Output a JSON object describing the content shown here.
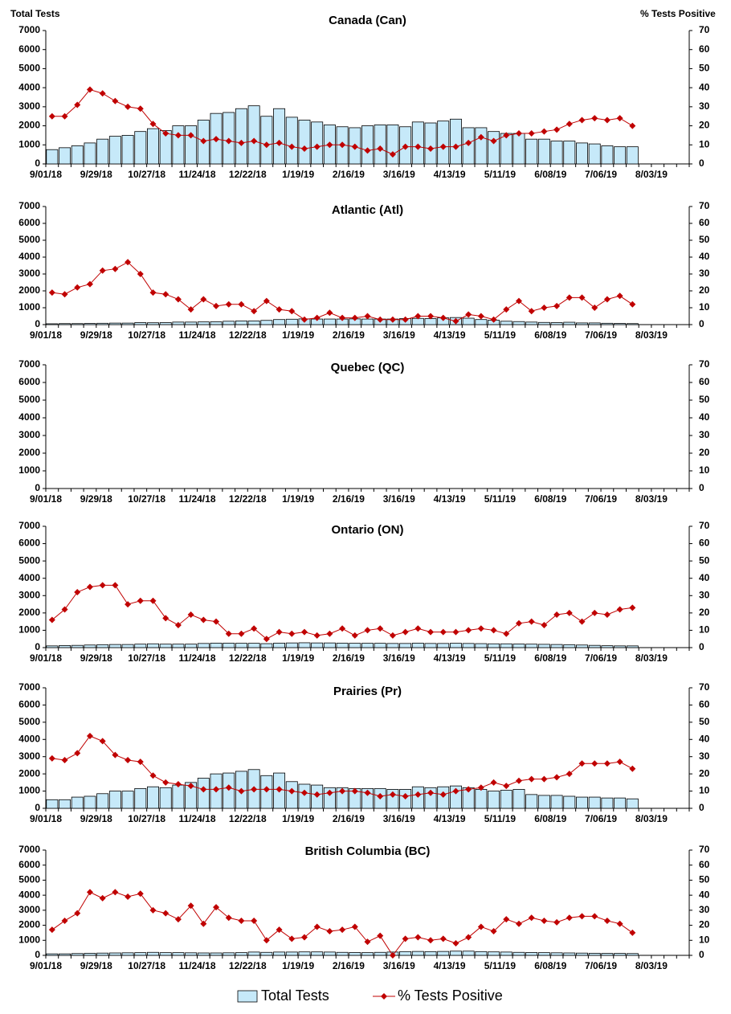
{
  "chart_data": [
    {
      "type": "combo",
      "title": "Canada (Can)",
      "ylabel": "Total Tests",
      "y2label": "% Tests Positive",
      "categories": [
        "9/01/18",
        null,
        null,
        null,
        "9/29/18",
        null,
        null,
        null,
        "10/27/18",
        null,
        null,
        null,
        "11/24/18",
        null,
        null,
        null,
        "12/22/18",
        null,
        null,
        null,
        "1/19/19",
        null,
        null,
        null,
        "2/16/19",
        null,
        null,
        null,
        "3/16/19",
        null,
        null,
        null,
        "4/13/19",
        null,
        null,
        null,
        "5/11/19",
        null,
        null,
        null,
        "6/08/19",
        null,
        null,
        null,
        "7/06/19",
        null,
        null,
        null,
        "8/03/19",
        null,
        null
      ],
      "series": [
        {
          "type": "bar",
          "color": "#c6e9f9",
          "values": [
            750,
            850,
            950,
            1100,
            1300,
            1450,
            1500,
            1700,
            1850,
            1750,
            2000,
            2000,
            2300,
            2650,
            2700,
            2900,
            3050,
            2500,
            2900,
            2450,
            2300,
            2200,
            2050,
            1950,
            1900,
            2000,
            2050,
            2050,
            1950,
            2200,
            2150,
            2250,
            2350,
            1900,
            1900,
            1700,
            1600,
            1600,
            1300,
            1300,
            1200,
            1200,
            1100,
            1050,
            950,
            900,
            900,
            null,
            null,
            null,
            null
          ]
        },
        {
          "type": "line",
          "axis": "y2",
          "color": "#c00000",
          "values": [
            25,
            25,
            31,
            39,
            37,
            33,
            30,
            29,
            21,
            16,
            15,
            15,
            12,
            13,
            12,
            11,
            12,
            10,
            11,
            9,
            8,
            9,
            10,
            10,
            9,
            7,
            8,
            5,
            9,
            9,
            8,
            9,
            9,
            11,
            14,
            12,
            15,
            16,
            16,
            17,
            18,
            21,
            23,
            24,
            23,
            24,
            20,
            null,
            null,
            null,
            null
          ]
        }
      ],
      "ylim": [
        0,
        7000
      ],
      "yticks": [
        0,
        1000,
        2000,
        3000,
        4000,
        5000,
        6000,
        7000
      ],
      "y2lim": [
        0,
        70
      ],
      "y2ticks": [
        0,
        10,
        20,
        30,
        40,
        50,
        60,
        70
      ]
    },
    {
      "type": "combo",
      "title": "Atlantic (Atl)",
      "categories": [
        "9/01/18",
        null,
        null,
        null,
        "9/29/18",
        null,
        null,
        null,
        "10/27/18",
        null,
        null,
        null,
        "11/24/18",
        null,
        null,
        null,
        "12/22/18",
        null,
        null,
        null,
        "1/19/19",
        null,
        null,
        null,
        "2/16/19",
        null,
        null,
        null,
        "3/16/19",
        null,
        null,
        null,
        "4/13/19",
        null,
        null,
        null,
        "5/11/19",
        null,
        null,
        null,
        "6/08/19",
        null,
        null,
        null,
        "7/06/19",
        null,
        null,
        null,
        "8/03/19",
        null,
        null
      ],
      "series": [
        {
          "type": "bar",
          "color": "#c6e9f9",
          "values": [
            50,
            60,
            60,
            70,
            80,
            90,
            90,
            120,
            110,
            120,
            150,
            150,
            160,
            170,
            200,
            220,
            220,
            250,
            300,
            320,
            340,
            330,
            330,
            330,
            340,
            330,
            330,
            330,
            360,
            370,
            360,
            400,
            420,
            380,
            300,
            260,
            200,
            180,
            150,
            130,
            120,
            140,
            100,
            100,
            80,
            70,
            60,
            null,
            null,
            null,
            null
          ]
        },
        {
          "type": "line",
          "axis": "y2",
          "color": "#c00000",
          "values": [
            19,
            18,
            22,
            24,
            32,
            33,
            37,
            30,
            19,
            18,
            15,
            9,
            15,
            11,
            12,
            12,
            8,
            14,
            9,
            8,
            3,
            4,
            7,
            4,
            4,
            5,
            3,
            3,
            3,
            5,
            5,
            4,
            2,
            6,
            5,
            3,
            9,
            14,
            8,
            10,
            11,
            16,
            16,
            10,
            15,
            17,
            12,
            null,
            null,
            null,
            null
          ]
        }
      ],
      "ylim": [
        0,
        7000
      ],
      "yticks": [
        0,
        1000,
        2000,
        3000,
        4000,
        5000,
        6000,
        7000
      ],
      "y2lim": [
        0,
        70
      ],
      "y2ticks": [
        0,
        10,
        20,
        30,
        40,
        50,
        60,
        70
      ]
    },
    {
      "type": "combo",
      "title": "Quebec (QC)",
      "categories": [
        "9/01/18",
        null,
        null,
        null,
        "9/29/18",
        null,
        null,
        null,
        "10/27/18",
        null,
        null,
        null,
        "11/24/18",
        null,
        null,
        null,
        "12/22/18",
        null,
        null,
        null,
        "1/19/19",
        null,
        null,
        null,
        "2/16/19",
        null,
        null,
        null,
        "3/16/19",
        null,
        null,
        null,
        "4/13/19",
        null,
        null,
        null,
        "5/11/19",
        null,
        null,
        null,
        "6/08/19",
        null,
        null,
        null,
        "7/06/19",
        null,
        null,
        null,
        "8/03/19",
        null,
        null
      ],
      "series": [
        {
          "type": "bar",
          "color": "#c6e9f9",
          "values": [
            null,
            null,
            null,
            null,
            null,
            null,
            null,
            null,
            null,
            null,
            null,
            null,
            null,
            null,
            null,
            null,
            null,
            null,
            null,
            null,
            null,
            null,
            null,
            null,
            null,
            null,
            null,
            null,
            null,
            null,
            null,
            null,
            null,
            null,
            null,
            null,
            null,
            null,
            null,
            null,
            null,
            null,
            null,
            null,
            null,
            null,
            null,
            null,
            null,
            null,
            null
          ]
        },
        {
          "type": "line",
          "axis": "y2",
          "color": "#c00000",
          "values": [
            null,
            null,
            null,
            null,
            null,
            null,
            null,
            null,
            null,
            null,
            null,
            null,
            null,
            null,
            null,
            null,
            null,
            null,
            null,
            null,
            null,
            null,
            null,
            null,
            null,
            null,
            null,
            null,
            null,
            null,
            null,
            null,
            null,
            null,
            null,
            null,
            null,
            null,
            null,
            null,
            null,
            null,
            null,
            null,
            null,
            null,
            null,
            null,
            null,
            null,
            null
          ]
        }
      ],
      "ylim": [
        0,
        7000
      ],
      "yticks": [
        0,
        1000,
        2000,
        3000,
        4000,
        5000,
        6000,
        7000
      ],
      "y2lim": [
        0,
        70
      ],
      "y2ticks": [
        0,
        10,
        20,
        30,
        40,
        50,
        60,
        70
      ]
    },
    {
      "type": "combo",
      "title": "Ontario (ON)",
      "categories": [
        "9/01/18",
        null,
        null,
        null,
        "9/29/18",
        null,
        null,
        null,
        "10/27/18",
        null,
        null,
        null,
        "11/24/18",
        null,
        null,
        null,
        "12/22/18",
        null,
        null,
        null,
        "1/19/19",
        null,
        null,
        null,
        "2/16/19",
        null,
        null,
        null,
        "3/16/19",
        null,
        null,
        null,
        "4/13/19",
        null,
        null,
        null,
        "5/11/19",
        null,
        null,
        null,
        "6/08/19",
        null,
        null,
        null,
        "7/06/19",
        null,
        null,
        null,
        "8/03/19",
        null,
        null
      ],
      "series": [
        {
          "type": "bar",
          "color": "#c6e9f9",
          "values": [
            100,
            120,
            130,
            150,
            170,
            180,
            180,
            200,
            220,
            200,
            200,
            200,
            240,
            260,
            260,
            250,
            250,
            230,
            260,
            270,
            280,
            270,
            270,
            260,
            250,
            250,
            250,
            240,
            240,
            260,
            240,
            240,
            250,
            240,
            230,
            220,
            220,
            210,
            200,
            190,
            180,
            170,
            150,
            130,
            110,
            100,
            100,
            null,
            null,
            null,
            null
          ]
        },
        {
          "type": "line",
          "axis": "y2",
          "color": "#c00000",
          "values": [
            16,
            22,
            32,
            35,
            36,
            36,
            25,
            27,
            27,
            17,
            13,
            19,
            16,
            15,
            8,
            8,
            11,
            5,
            9,
            8,
            9,
            7,
            8,
            11,
            7,
            10,
            11,
            7,
            9,
            11,
            9,
            9,
            9,
            10,
            11,
            10,
            8,
            14,
            15,
            13,
            19,
            20,
            15,
            20,
            19,
            22,
            23,
            null,
            null,
            null,
            null
          ]
        }
      ],
      "ylim": [
        0,
        7000
      ],
      "yticks": [
        0,
        1000,
        2000,
        3000,
        4000,
        5000,
        6000,
        7000
      ],
      "y2lim": [
        0,
        70
      ],
      "y2ticks": [
        0,
        10,
        20,
        30,
        40,
        50,
        60,
        70
      ]
    },
    {
      "type": "combo",
      "title": "Prairies (Pr)",
      "categories": [
        "9/01/18",
        null,
        null,
        null,
        "9/29/18",
        null,
        null,
        null,
        "10/27/18",
        null,
        null,
        null,
        "11/24/18",
        null,
        null,
        null,
        "12/22/18",
        null,
        null,
        null,
        "1/19/19",
        null,
        null,
        null,
        "2/16/19",
        null,
        null,
        null,
        "3/16/19",
        null,
        null,
        null,
        "4/13/19",
        null,
        null,
        null,
        "5/11/19",
        null,
        null,
        null,
        "6/08/19",
        null,
        null,
        null,
        "7/06/19",
        null,
        null,
        null,
        "8/03/19",
        null,
        null
      ],
      "series": [
        {
          "type": "bar",
          "color": "#c6e9f9",
          "values": [
            500,
            500,
            650,
            700,
            850,
            1000,
            1000,
            1150,
            1250,
            1200,
            1350,
            1500,
            1750,
            2000,
            2050,
            2150,
            2250,
            1900,
            2050,
            1550,
            1400,
            1350,
            1200,
            1200,
            1150,
            1150,
            1150,
            1100,
            1100,
            1250,
            1200,
            1250,
            1300,
            1200,
            1100,
            1000,
            1050,
            1100,
            800,
            750,
            750,
            700,
            650,
            650,
            600,
            600,
            550,
            null,
            null,
            null,
            null
          ]
        },
        {
          "type": "line",
          "axis": "y2",
          "color": "#c00000",
          "values": [
            29,
            28,
            32,
            42,
            39,
            31,
            28,
            27,
            19,
            15,
            14,
            13,
            11,
            11,
            12,
            10,
            11,
            11,
            11,
            10,
            9,
            8,
            9,
            10,
            10,
            9,
            7,
            8,
            7,
            8,
            9,
            8,
            10,
            11,
            12,
            15,
            13,
            16,
            17,
            17,
            18,
            20,
            26,
            26,
            26,
            27,
            23,
            null,
            null,
            null,
            null
          ]
        }
      ],
      "ylim": [
        0,
        7000
      ],
      "yticks": [
        0,
        1000,
        2000,
        3000,
        4000,
        5000,
        6000,
        7000
      ],
      "y2lim": [
        0,
        70
      ],
      "y2ticks": [
        0,
        10,
        20,
        30,
        40,
        50,
        60,
        70
      ]
    },
    {
      "type": "combo",
      "title": "British Columbia (BC)",
      "categories": [
        "9/01/18",
        null,
        null,
        null,
        "9/29/18",
        null,
        null,
        null,
        "10/27/18",
        null,
        null,
        null,
        "11/24/18",
        null,
        null,
        null,
        "12/22/18",
        null,
        null,
        null,
        "1/19/19",
        null,
        null,
        null,
        "2/16/19",
        null,
        null,
        null,
        "3/16/19",
        null,
        null,
        null,
        "4/13/19",
        null,
        null,
        null,
        "5/11/19",
        null,
        null,
        null,
        "6/08/19",
        null,
        null,
        null,
        "7/06/19",
        null,
        null,
        null,
        "8/03/19",
        null,
        null
      ],
      "series": [
        {
          "type": "bar",
          "color": "#c6e9f9",
          "values": [
            100,
            100,
            120,
            140,
            150,
            160,
            170,
            180,
            200,
            180,
            180,
            170,
            160,
            160,
            170,
            180,
            220,
            200,
            220,
            220,
            230,
            230,
            220,
            200,
            190,
            180,
            200,
            220,
            250,
            260,
            250,
            260,
            280,
            280,
            250,
            230,
            220,
            200,
            190,
            180,
            170,
            160,
            150,
            140,
            130,
            130,
            120,
            null,
            null,
            null,
            null
          ]
        },
        {
          "type": "line",
          "axis": "y2",
          "color": "#c00000",
          "values": [
            17,
            23,
            28,
            42,
            38,
            42,
            39,
            41,
            30,
            28,
            24,
            33,
            21,
            32,
            25,
            23,
            23,
            10,
            17,
            11,
            12,
            19,
            16,
            17,
            19,
            9,
            13,
            0,
            11,
            12,
            10,
            11,
            8,
            12,
            19,
            16,
            24,
            21,
            25,
            23,
            22,
            25,
            26,
            26,
            23,
            21,
            15,
            null,
            null,
            null,
            null
          ]
        }
      ],
      "ylim": [
        0,
        7000
      ],
      "yticks": [
        0,
        1000,
        2000,
        3000,
        4000,
        5000,
        6000,
        7000
      ],
      "y2lim": [
        0,
        70
      ],
      "y2ticks": [
        0,
        10,
        20,
        30,
        40,
        50,
        60,
        70
      ]
    }
  ],
  "legend": [
    "Total Tests",
    "% Tests Positive"
  ]
}
